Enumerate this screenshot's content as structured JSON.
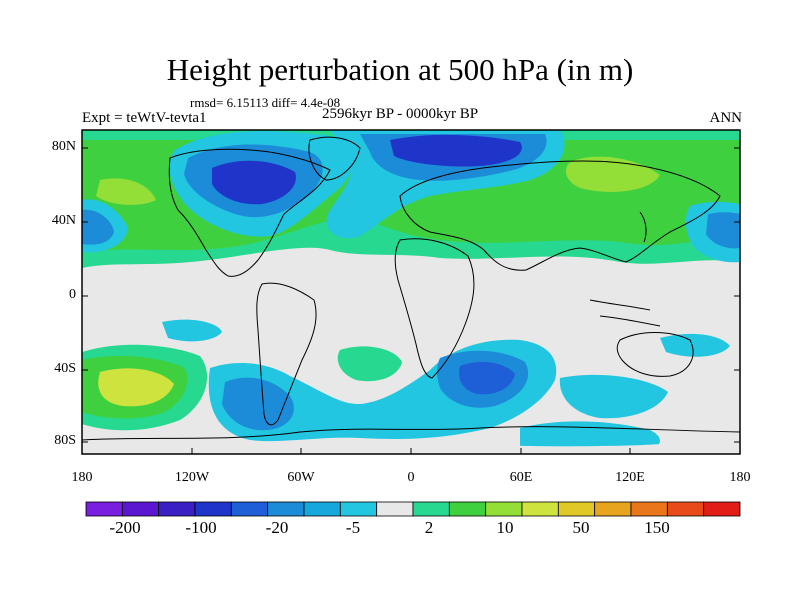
{
  "title": "Height perturbation at 500 hPa (in m)",
  "stats_line": "rmsd= 6.15113 diff= 4.4e-08",
  "experiment": "Expt = teWtV-tevta1",
  "period": "2596kyr BP - 0000kyr BP",
  "season": "ANN",
  "lat_ticks": [
    "80N",
    "40N",
    "0",
    "40S",
    "80S"
  ],
  "lon_ticks": [
    "180",
    "120W",
    "60W",
    "0",
    "60E",
    "120E",
    "180"
  ],
  "colorbar": {
    "labels": [
      "-200",
      "-100",
      "-20",
      "-5",
      "2",
      "10",
      "50",
      "150"
    ],
    "colors": [
      "#7a1fe0",
      "#5a17cf",
      "#3a1fc4",
      "#1f34c8",
      "#1e5fd8",
      "#1d8cd8",
      "#16a7dc",
      "#23c6e0",
      "#e8e8e8",
      "#27d890",
      "#3fd040",
      "#93de37",
      "#cfe33f",
      "#e0c826",
      "#e7a41f",
      "#e9761b",
      "#e84a1a",
      "#e21d18"
    ]
  },
  "colors": {
    "background": "#ffffff",
    "ocean_neutral": "#e8e8e8",
    "coast": "#000000"
  }
}
